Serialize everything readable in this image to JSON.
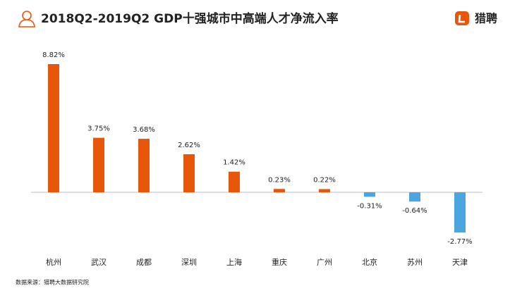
{
  "chart_data": {
    "type": "bar",
    "title": "2018Q2-2019Q2 GDP十强城市中高端人才净流入率",
    "brand": "猎聘",
    "source": "数据来源：猎聘大数据研究院",
    "categories": [
      "杭州",
      "武汉",
      "成都",
      "深圳",
      "上海",
      "重庆",
      "广州",
      "北京",
      "苏州",
      "天津"
    ],
    "values": [
      8.82,
      3.75,
      3.68,
      2.62,
      1.42,
      0.23,
      0.22,
      -0.31,
      -0.64,
      -2.77
    ],
    "value_labels": [
      "8.82%",
      "3.75%",
      "3.68%",
      "2.62%",
      "1.42%",
      "0.23%",
      "0.22%",
      "-0.31%",
      "-0.64%",
      "-2.77%"
    ],
    "positive_color": "#e8560c",
    "negative_color": "#4ba6e0"
  }
}
